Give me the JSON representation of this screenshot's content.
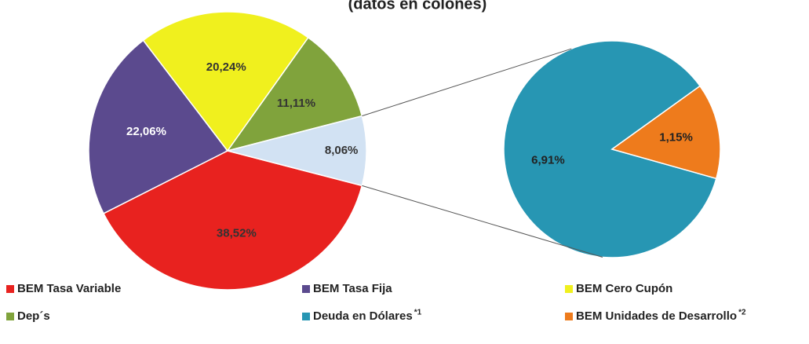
{
  "chart_data": {
    "type": "pie-of-pie",
    "title": "(datos en colones)",
    "categories": [
      "BEM Tasa Variable",
      "BEM Tasa Fija",
      "BEM Cero Cupón",
      "Dep´s",
      null
    ],
    "values": [
      38.52,
      22.06,
      20.24,
      11.11,
      8.06
    ],
    "value_labels": [
      "38,52%",
      "22,06%",
      "20,24%",
      "11,11%",
      "8,06%"
    ],
    "colors": [
      "#e8221f",
      "#5b4a8e",
      "#f0f01e",
      "#80a33c",
      "#d2e2f3"
    ],
    "secondary": {
      "categories": [
        "Deuda en Dólares",
        "BEM Unidades de Desarrollo"
      ],
      "footnotes": [
        "*1",
        "*2"
      ],
      "values": [
        6.91,
        1.15
      ],
      "value_labels": [
        "6,91%",
        "1,15%"
      ],
      "colors": [
        "#2796b3",
        "#ee7b1c"
      ]
    }
  }
}
